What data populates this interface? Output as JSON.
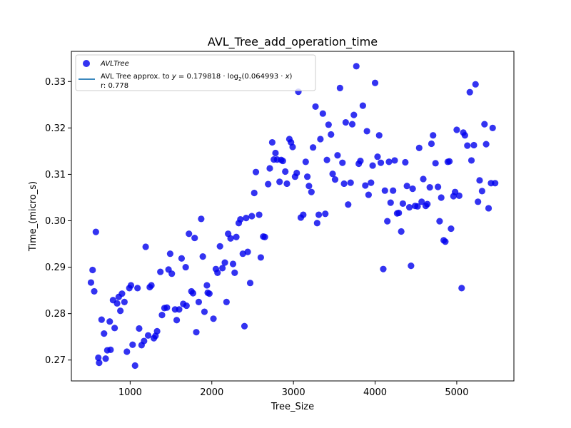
{
  "chart_data": {
    "type": "scatter",
    "title": "AVL_Tree_add_operation_time",
    "xlabel": "Tree_Size",
    "ylabel": "Time_(micro_s)",
    "xlim": [
      280,
      5700
    ],
    "ylim": [
      0.2655,
      0.3365
    ],
    "x_ticks": [
      1000,
      2000,
      3000,
      4000,
      5000
    ],
    "y_ticks": [
      0.27,
      0.28,
      0.29,
      0.3,
      0.31,
      0.32,
      0.33
    ],
    "y_tick_labels": [
      "0.27",
      "0.28",
      "0.29",
      "0.30",
      "0.31",
      "0.32",
      "0.33"
    ],
    "grid": false,
    "legend_position": "top-left",
    "series": [
      {
        "name": "AVLTree",
        "kind": "scatter",
        "color": "#0000ee",
        "points": [
          [
            520,
            0.2867
          ],
          [
            540,
            0.2894
          ],
          [
            560,
            0.2848
          ],
          [
            580,
            0.2976
          ],
          [
            610,
            0.2705
          ],
          [
            620,
            0.2694
          ],
          [
            650,
            0.2787
          ],
          [
            680,
            0.2757
          ],
          [
            700,
            0.2703
          ],
          [
            720,
            0.2721
          ],
          [
            750,
            0.2783
          ],
          [
            760,
            0.2722
          ],
          [
            790,
            0.2829
          ],
          [
            810,
            0.2769
          ],
          [
            840,
            0.2822
          ],
          [
            860,
            0.2836
          ],
          [
            880,
            0.2806
          ],
          [
            900,
            0.2843
          ],
          [
            930,
            0.2825
          ],
          [
            960,
            0.2718
          ],
          [
            990,
            0.2855
          ],
          [
            1010,
            0.2861
          ],
          [
            1030,
            0.2733
          ],
          [
            1060,
            0.2688
          ],
          [
            1090,
            0.2855
          ],
          [
            1110,
            0.2768
          ],
          [
            1140,
            0.2732
          ],
          [
            1170,
            0.2741
          ],
          [
            1190,
            0.2944
          ],
          [
            1220,
            0.2753
          ],
          [
            1240,
            0.2857
          ],
          [
            1260,
            0.2861
          ],
          [
            1290,
            0.2747
          ],
          [
            1310,
            0.2752
          ],
          [
            1330,
            0.2762
          ],
          [
            1370,
            0.289
          ],
          [
            1390,
            0.2797
          ],
          [
            1420,
            0.2812
          ],
          [
            1450,
            0.2813
          ],
          [
            1470,
            0.2895
          ],
          [
            1490,
            0.2929
          ],
          [
            1510,
            0.2886
          ],
          [
            1550,
            0.2809
          ],
          [
            1570,
            0.2786
          ],
          [
            1600,
            0.2809
          ],
          [
            1630,
            0.2919
          ],
          [
            1650,
            0.2821
          ],
          [
            1680,
            0.29
          ],
          [
            1690,
            0.2817
          ],
          [
            1720,
            0.2972
          ],
          [
            1750,
            0.2848
          ],
          [
            1770,
            0.2844
          ],
          [
            1790,
            0.2963
          ],
          [
            1810,
            0.276
          ],
          [
            1840,
            0.2825
          ],
          [
            1870,
            0.3004
          ],
          [
            1890,
            0.2923
          ],
          [
            1910,
            0.2804
          ],
          [
            1940,
            0.2861
          ],
          [
            1950,
            0.2845
          ],
          [
            1970,
            0.2843
          ],
          [
            2020,
            0.2789
          ],
          [
            2050,
            0.2896
          ],
          [
            2070,
            0.2888
          ],
          [
            2100,
            0.2945
          ],
          [
            2130,
            0.2898
          ],
          [
            2160,
            0.291
          ],
          [
            2180,
            0.2825
          ],
          [
            2200,
            0.2972
          ],
          [
            2230,
            0.2962
          ],
          [
            2260,
            0.2907
          ],
          [
            2280,
            0.2888
          ],
          [
            2300,
            0.2965
          ],
          [
            2330,
            0.2995
          ],
          [
            2350,
            0.3003
          ],
          [
            2380,
            0.2929
          ],
          [
            2400,
            0.2773
          ],
          [
            2420,
            0.3006
          ],
          [
            2440,
            0.2933
          ],
          [
            2470,
            0.2866
          ],
          [
            2490,
            0.301
          ],
          [
            2520,
            0.306
          ],
          [
            2540,
            0.3105
          ],
          [
            2580,
            0.3013
          ],
          [
            2600,
            0.2921
          ],
          [
            2630,
            0.2966
          ],
          [
            2650,
            0.2965
          ],
          [
            2690,
            0.3079
          ],
          [
            2710,
            0.3113
          ],
          [
            2740,
            0.3169
          ],
          [
            2760,
            0.3132
          ],
          [
            2780,
            0.3146
          ],
          [
            2800,
            0.3132
          ],
          [
            2830,
            0.3084
          ],
          [
            2850,
            0.3131
          ],
          [
            2870,
            0.3129
          ],
          [
            2900,
            0.3106
          ],
          [
            2920,
            0.308
          ],
          [
            2950,
            0.3176
          ],
          [
            2970,
            0.3169
          ],
          [
            2990,
            0.3159
          ],
          [
            3020,
            0.3095
          ],
          [
            3040,
            0.3103
          ],
          [
            3060,
            0.3278
          ],
          [
            3090,
            0.3007
          ],
          [
            3120,
            0.3013
          ],
          [
            3150,
            0.3127
          ],
          [
            3170,
            0.3095
          ],
          [
            3190,
            0.3075
          ],
          [
            3220,
            0.3062
          ],
          [
            3240,
            0.3158
          ],
          [
            3270,
            0.3246
          ],
          [
            3290,
            0.2995
          ],
          [
            3310,
            0.3013
          ],
          [
            3330,
            0.3176
          ],
          [
            3360,
            0.3231
          ],
          [
            3390,
            0.3015
          ],
          [
            3410,
            0.3131
          ],
          [
            3430,
            0.3207
          ],
          [
            3460,
            0.3186
          ],
          [
            3480,
            0.3101
          ],
          [
            3510,
            0.3089
          ],
          [
            3540,
            0.3141
          ],
          [
            3570,
            0.3286
          ],
          [
            3600,
            0.3125
          ],
          [
            3620,
            0.308
          ],
          [
            3640,
            0.3212
          ],
          [
            3670,
            0.3035
          ],
          [
            3700,
            0.3082
          ],
          [
            3720,
            0.3208
          ],
          [
            3740,
            0.3228
          ],
          [
            3770,
            0.3333
          ],
          [
            3800,
            0.3123
          ],
          [
            3820,
            0.3129
          ],
          [
            3850,
            0.3248
          ],
          [
            3880,
            0.3076
          ],
          [
            3900,
            0.3193
          ],
          [
            3920,
            0.3056
          ],
          [
            3950,
            0.3082
          ],
          [
            3970,
            0.3119
          ],
          [
            4000,
            0.3297
          ],
          [
            4030,
            0.3138
          ],
          [
            4050,
            0.3184
          ],
          [
            4070,
            0.3125
          ],
          [
            4100,
            0.2896
          ],
          [
            4120,
            0.3065
          ],
          [
            4150,
            0.2999
          ],
          [
            4170,
            0.3127
          ],
          [
            4190,
            0.3039
          ],
          [
            4220,
            0.3065
          ],
          [
            4240,
            0.313
          ],
          [
            4270,
            0.3016
          ],
          [
            4290,
            0.3017
          ],
          [
            4320,
            0.2977
          ],
          [
            4340,
            0.3037
          ],
          [
            4370,
            0.3126
          ],
          [
            4390,
            0.3075
          ],
          [
            4420,
            0.3029
          ],
          [
            4440,
            0.2903
          ],
          [
            4460,
            0.3069
          ],
          [
            4490,
            0.3032
          ],
          [
            4520,
            0.3031
          ],
          [
            4540,
            0.3157
          ],
          [
            4570,
            0.3041
          ],
          [
            4590,
            0.309
          ],
          [
            4620,
            0.3032
          ],
          [
            4640,
            0.3036
          ],
          [
            4670,
            0.3072
          ],
          [
            4690,
            0.3166
          ],
          [
            4710,
            0.3184
          ],
          [
            4740,
            0.3124
          ],
          [
            4770,
            0.3073
          ],
          [
            4790,
            0.2999
          ],
          [
            4810,
            0.305
          ],
          [
            4840,
            0.2958
          ],
          [
            4860,
            0.2955
          ],
          [
            4890,
            0.3127
          ],
          [
            4910,
            0.3128
          ],
          [
            4930,
            0.2983
          ],
          [
            4960,
            0.3053
          ],
          [
            4980,
            0.3062
          ],
          [
            5000,
            0.3196
          ],
          [
            5030,
            0.3054
          ],
          [
            5060,
            0.2855
          ],
          [
            5080,
            0.319
          ],
          [
            5100,
            0.3184
          ],
          [
            5130,
            0.3162
          ],
          [
            5160,
            0.3277
          ],
          [
            5180,
            0.313
          ],
          [
            5210,
            0.3163
          ],
          [
            5230,
            0.3294
          ],
          [
            5260,
            0.3041
          ],
          [
            5280,
            0.3087
          ],
          [
            5310,
            0.3064
          ],
          [
            5340,
            0.3208
          ],
          [
            5360,
            0.3165
          ],
          [
            5390,
            0.3027
          ],
          [
            5420,
            0.3081
          ],
          [
            5440,
            0.32
          ],
          [
            5470,
            0.3081
          ]
        ]
      },
      {
        "name": "AVL Tree approx. to",
        "kind": "line",
        "color": "#1f77b4",
        "a": 0.179818,
        "b": 0.064993,
        "x_range": [
          500,
          5480
        ],
        "r_label": "r: 0.778"
      }
    ],
    "legend": {
      "scatter_label": "AVLTree",
      "line_label_prefix": "AVL Tree approx. to ",
      "line_label_math_y": "y",
      "line_label_math_eq": " = 0.179818 · log",
      "line_label_math_sub": "2",
      "line_label_math_rest": "(0.064993 · ",
      "line_label_math_x": "x",
      "line_label_math_close": ")",
      "r_label": "r: 0.778"
    }
  }
}
